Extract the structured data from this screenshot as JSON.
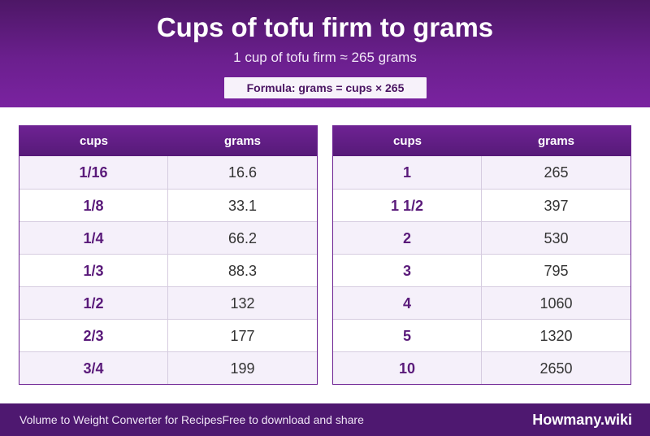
{
  "header": {
    "title": "Cups of tofu firm to grams",
    "subtitle": "1 cup of tofu firm ≈ 265 grams",
    "formula": "Formula: grams = cups × 265"
  },
  "tables": [
    {
      "columns": [
        "cups",
        "grams"
      ],
      "rows": [
        [
          "1/16",
          "16.6"
        ],
        [
          "1/8",
          "33.1"
        ],
        [
          "1/4",
          "66.2"
        ],
        [
          "1/3",
          "88.3"
        ],
        [
          "1/2",
          "132"
        ],
        [
          "2/3",
          "177"
        ],
        [
          "3/4",
          "199"
        ]
      ]
    },
    {
      "columns": [
        "cups",
        "grams"
      ],
      "rows": [
        [
          "1",
          "265"
        ],
        [
          "1 1/2",
          "397"
        ],
        [
          "2",
          "530"
        ],
        [
          "3",
          "795"
        ],
        [
          "4",
          "1060"
        ],
        [
          "5",
          "1320"
        ],
        [
          "10",
          "2650"
        ]
      ]
    }
  ],
  "footer": {
    "left_text": "Volume to Weight Converter for Recipes",
    "middle_text": "Free to download and share",
    "brand": "Howmany.wiki"
  }
}
